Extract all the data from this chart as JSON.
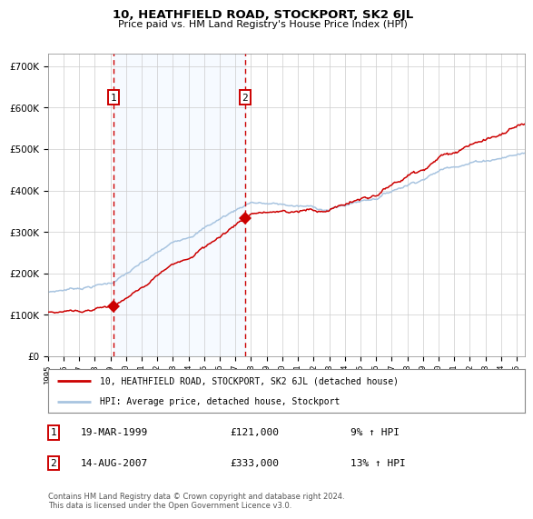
{
  "title": "10, HEATHFIELD ROAD, STOCKPORT, SK2 6JL",
  "subtitle": "Price paid vs. HM Land Registry's House Price Index (HPI)",
  "legend_line1": "10, HEATHFIELD ROAD, STOCKPORT, SK2 6JL (detached house)",
  "legend_line2": "HPI: Average price, detached house, Stockport",
  "sale1_date": "19-MAR-1999",
  "sale1_price": "£121,000",
  "sale1_hpi": "9% ↑ HPI",
  "sale2_date": "14-AUG-2007",
  "sale2_price": "£333,000",
  "sale2_hpi": "13% ↑ HPI",
  "footer": "Contains HM Land Registry data © Crown copyright and database right 2024.\nThis data is licensed under the Open Government Licence v3.0.",
  "red_color": "#cc0000",
  "blue_color": "#a8c4e0",
  "shade_color": "#ddeeff",
  "plot_bg": "#ffffff",
  "grid_color": "#cccccc",
  "ylim": [
    0,
    730000
  ],
  "yticks": [
    0,
    100000,
    200000,
    300000,
    400000,
    500000,
    600000,
    700000
  ],
  "sale1_x": 1999.21,
  "sale1_y": 121000,
  "sale2_x": 2007.62,
  "sale2_y": 333000,
  "xmin": 1995.0,
  "xmax": 2025.5
}
